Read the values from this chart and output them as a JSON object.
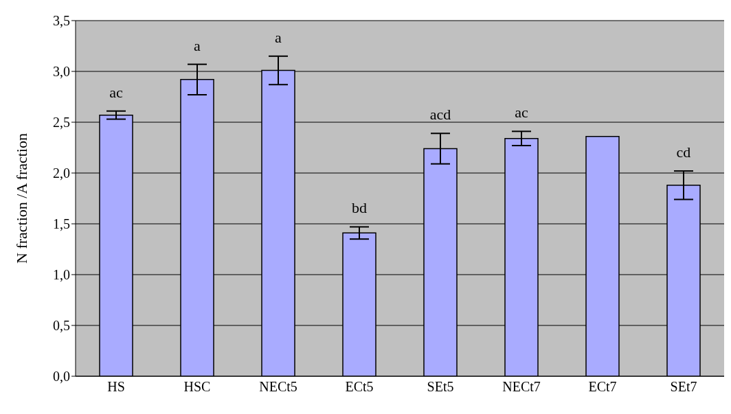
{
  "chart_data": {
    "type": "bar",
    "ylabel": "N fraction /A fraction",
    "categories": [
      "HS",
      "HSC",
      "NECt5",
      "ECt5",
      "SEt5",
      "NECt7",
      "ECt7",
      "SEt7"
    ],
    "values": [
      2.57,
      2.92,
      3.01,
      1.41,
      2.24,
      2.34,
      2.36,
      1.88
    ],
    "errors": [
      0.04,
      0.15,
      0.14,
      0.06,
      0.15,
      0.07,
      null,
      0.14
    ],
    "color": "#a9abff",
    "ylim": [
      0,
      3.5
    ],
    "yticks": [
      {
        "value": 0,
        "label": "0,0"
      },
      {
        "value": 0.5,
        "label": "0,5"
      },
      {
        "value": 1,
        "label": "1,0"
      },
      {
        "value": 1.5,
        "label": "1,5"
      },
      {
        "value": 2,
        "label": "2,0"
      },
      {
        "value": 2.5,
        "label": "2,5"
      },
      {
        "value": 3,
        "label": "3,0"
      },
      {
        "value": 3.5,
        "label": "3,5"
      }
    ],
    "grid": "y",
    "value_labels": [
      "ac",
      "a",
      "a",
      "bd",
      "acd",
      "ac",
      null,
      "cd"
    ]
  }
}
